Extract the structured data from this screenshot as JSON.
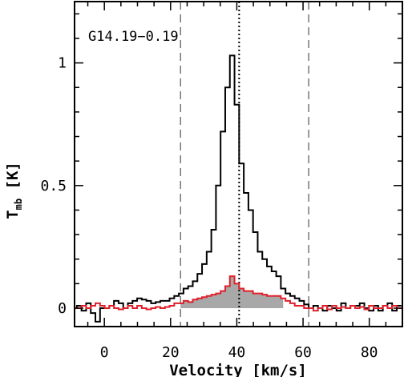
{
  "chart_data": {
    "type": "line",
    "title": "G14.19−0.19",
    "xlabel": "Velocity [km/s]",
    "ylabel_main": "T",
    "ylabel_sub": "mb",
    "ylabel_unit": "[K]",
    "xlim": [
      -9,
      90
    ],
    "ylim": [
      -0.075,
      1.25
    ],
    "xticks": [
      0,
      20,
      40,
      60,
      80
    ],
    "xtick_labels": [
      "0",
      "20",
      "40",
      "60",
      "80"
    ],
    "yticks": [
      0,
      0.5,
      1
    ],
    "ytick_labels": [
      "0",
      "0.5",
      "1"
    ],
    "vlines": [
      {
        "x": 23.0,
        "style": "dashed"
      },
      {
        "x": 40.7,
        "style": "dotted"
      },
      {
        "x": 61.7,
        "style": "dashed"
      }
    ],
    "channel_width": 1.4,
    "series": [
      {
        "color": "#000000",
        "x": [
          -9,
          -7.6,
          -6.2,
          -4.8,
          -3.4,
          -2,
          -0.6,
          0.8,
          2.2,
          3.6,
          5,
          6.4,
          7.8,
          9.2,
          10.6,
          12,
          13.4,
          14.8,
          16.2,
          17.6,
          19,
          20.4,
          21.8,
          23.2,
          24.6,
          26,
          27.4,
          28.8,
          30.2,
          31.6,
          33,
          34.4,
          35.8,
          37.2,
          38.6,
          40,
          41.4,
          42.8,
          44.2,
          45.6,
          47,
          48.4,
          49.8,
          51.2,
          52.6,
          54,
          55.4,
          56.8,
          58.2,
          59.6,
          61,
          62.4,
          63.8,
          65.2,
          66.6,
          68,
          69.4,
          70.8,
          72.2,
          73.6,
          75,
          76.4,
          77.8,
          79.2,
          80.6,
          82,
          83.4,
          84.8,
          86.2,
          87.6,
          89
        ],
        "y": [
          0,
          0.01,
          -0.01,
          0.02,
          -0.02,
          -0.055,
          0,
          0,
          0.01,
          0.03,
          0.02,
          0,
          0.02,
          0.03,
          0.04,
          0.035,
          0.03,
          0.02,
          0.025,
          0.03,
          0.03,
          0.04,
          0.05,
          0.06,
          0.08,
          0.09,
          0.11,
          0.14,
          0.18,
          0.23,
          0.32,
          0.5,
          0.72,
          0.9,
          1.03,
          0.83,
          0.59,
          0.47,
          0.4,
          0.31,
          0.23,
          0.2,
          0.17,
          0.15,
          0.13,
          0.08,
          0.06,
          0.05,
          0.04,
          0.03,
          0.015,
          0,
          0.01,
          0,
          -0.01,
          0.01,
          0,
          -0.01,
          0.02,
          0,
          0.01,
          0.01,
          0.02,
          0,
          -0.01,
          0.01,
          -0.01,
          0.01,
          0.02,
          -0.01,
          0.01
        ]
      },
      {
        "color": "#e0202a",
        "fill": "#a8a8a8",
        "fill_range": [
          23,
          54
        ],
        "x": [
          -9,
          -7.6,
          -6.2,
          -4.8,
          -3.4,
          -2,
          -0.6,
          0.8,
          2.2,
          3.6,
          5,
          6.4,
          7.8,
          9.2,
          10.6,
          12,
          13.4,
          14.8,
          16.2,
          17.6,
          19,
          20.4,
          21.8,
          23.2,
          24.6,
          26,
          27.4,
          28.8,
          30.2,
          31.6,
          33,
          34.4,
          35.8,
          37.2,
          38.6,
          40,
          41.4,
          42.8,
          44.2,
          45.6,
          47,
          48.4,
          49.8,
          51.2,
          52.6,
          54,
          55.4,
          56.8,
          58.2,
          59.6,
          61,
          62.4,
          63.8,
          65.2,
          66.6,
          68,
          69.4,
          70.8,
          72.2,
          73.6,
          75,
          76.4,
          77.8,
          79.2,
          80.6,
          82,
          83.4,
          84.8,
          86.2,
          87.6,
          89
        ],
        "y": [
          0,
          0,
          0.01,
          0,
          0.01,
          0.02,
          0.01,
          0,
          0.01,
          0,
          -0.005,
          0,
          0.01,
          0,
          0.01,
          0,
          -0.005,
          0,
          0.005,
          0,
          0.005,
          0.01,
          0.02,
          0.02,
          0.03,
          0.025,
          0.035,
          0.04,
          0.045,
          0.05,
          0.055,
          0.06,
          0.07,
          0.09,
          0.13,
          0.1,
          0.08,
          0.07,
          0.07,
          0.06,
          0.06,
          0.055,
          0.05,
          0.05,
          0.05,
          0.04,
          0.03,
          0.02,
          0.01,
          0.01,
          0,
          0,
          -0.01,
          0,
          0.01,
          -0.005,
          0.01,
          0,
          0.005,
          0,
          0.01,
          0,
          0.005,
          -0.005,
          0.01,
          0,
          0,
          0.01,
          0,
          0.01,
          0
        ]
      }
    ]
  }
}
